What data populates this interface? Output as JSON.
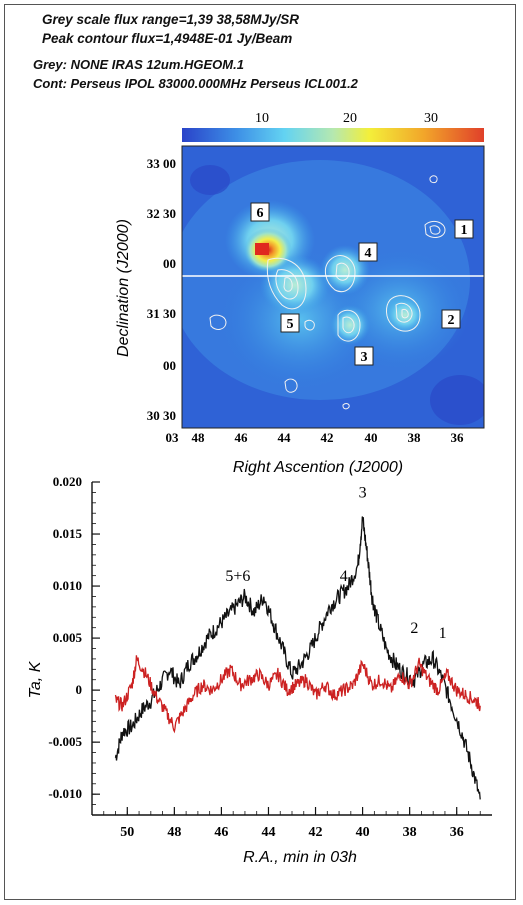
{
  "header": {
    "line1": "Grey scale flux range=1,39 38,58MJy/SR",
    "line2": "Peak contour flux=1,4948E-01 Jy/Beam",
    "line3": "Grey: NONE IRAS 12um.HGEOM.1",
    "line4": "Cont: Perseus IPOL 83000.000MHz Perseus ICL001.2"
  },
  "colorbar": {
    "ticks": [
      "10",
      "20",
      "30"
    ],
    "colors": [
      "#2a43c9",
      "#3d8fe6",
      "#63d3f2",
      "#b5e8b0",
      "#f3ef3a",
      "#f2a62a",
      "#e0402a"
    ]
  },
  "map_chart": {
    "type": "heatmap",
    "xlabel": "Right Ascention (J2000)",
    "ylabel": "Declination (J2000)",
    "x_hour_label": "03",
    "x_ticks": [
      "48",
      "46",
      "44",
      "42",
      "40",
      "38",
      "36"
    ],
    "y_ticks": [
      "33 00",
      "32 30",
      "00",
      "31 30",
      "00",
      "30 30"
    ],
    "sources": [
      {
        "label": "1"
      },
      {
        "label": "2"
      },
      {
        "label": "3"
      },
      {
        "label": "4"
      },
      {
        "label": "5"
      },
      {
        "label": "6"
      }
    ]
  },
  "chart_data": {
    "type": "line",
    "xlabel": "R.A., min in 03h",
    "ylabel": "Ta, K",
    "xlim": [
      51.5,
      34.5
    ],
    "ylim": [
      -0.012,
      0.02
    ],
    "x_ticks": [
      "50",
      "48",
      "46",
      "44",
      "42",
      "40",
      "38",
      "36"
    ],
    "y_ticks": [
      "0.020",
      "0.015",
      "0.010",
      "0.005",
      "0",
      "-0.005",
      "-0.010"
    ],
    "annotations": [
      {
        "text": "5+6",
        "x": 45.3,
        "y": 0.0105
      },
      {
        "text": "4",
        "x": 40.8,
        "y": 0.0105
      },
      {
        "text": "3",
        "x": 40.0,
        "y": 0.0185
      },
      {
        "text": "2",
        "x": 37.8,
        "y": 0.0055
      },
      {
        "text": "1",
        "x": 36.6,
        "y": 0.005
      }
    ],
    "series": [
      {
        "color": "#111111",
        "x": [
          50.5,
          50.2,
          49.8,
          49.4,
          49.0,
          48.6,
          48.2,
          47.8,
          47.4,
          47.0,
          46.6,
          46.2,
          45.8,
          45.4,
          45.0,
          44.6,
          44.2,
          43.8,
          43.4,
          43.0,
          42.6,
          42.2,
          41.8,
          41.4,
          41.0,
          40.6,
          40.2,
          40.0,
          39.8,
          39.6,
          39.4,
          39.0,
          38.6,
          38.2,
          37.8,
          37.4,
          37.0,
          36.6,
          36.2,
          35.8,
          35.4,
          35.0
        ],
        "y": [
          -0.0065,
          -0.004,
          -0.0035,
          -0.002,
          -0.001,
          0.0005,
          0.002,
          0.0005,
          0.0025,
          0.0035,
          0.005,
          0.006,
          0.007,
          0.008,
          0.009,
          0.0075,
          0.009,
          0.0065,
          0.004,
          0.0015,
          0.0025,
          0.004,
          0.006,
          0.008,
          0.009,
          0.01,
          0.012,
          0.0165,
          0.013,
          0.009,
          0.007,
          0.004,
          0.0025,
          0.0015,
          0.001,
          0.0025,
          0.003,
          0.001,
          -0.0015,
          -0.004,
          -0.007,
          -0.0105
        ]
      },
      {
        "color": "#cc2222",
        "x": [
          50.5,
          50.2,
          49.8,
          49.6,
          49.2,
          48.8,
          48.4,
          48.0,
          47.6,
          47.2,
          46.8,
          46.4,
          46.0,
          45.6,
          45.2,
          44.8,
          44.4,
          44.0,
          43.6,
          43.2,
          42.8,
          42.4,
          42.0,
          41.6,
          41.2,
          40.8,
          40.4,
          40.0,
          39.6,
          39.2,
          38.8,
          38.4,
          38.0,
          37.6,
          37.2,
          36.8,
          36.4,
          36.0,
          35.6,
          35.2,
          35.0
        ],
        "y": [
          -0.001,
          -0.0015,
          0.0005,
          0.003,
          0.0015,
          -0.0005,
          -0.002,
          -0.0035,
          -0.002,
          -0.0005,
          0.0005,
          0.0,
          0.001,
          0.002,
          0.0005,
          0.001,
          0.0015,
          0.0005,
          0.0015,
          0.0,
          0.0005,
          0.001,
          -0.0005,
          0.0005,
          -0.0005,
          0.0,
          0.0005,
          0.0025,
          0.0005,
          0.001,
          0.0,
          0.0015,
          0.0005,
          0.0025,
          0.001,
          0.0,
          0.0015,
          0.0,
          -0.0005,
          -0.001,
          -0.0015
        ]
      }
    ]
  }
}
